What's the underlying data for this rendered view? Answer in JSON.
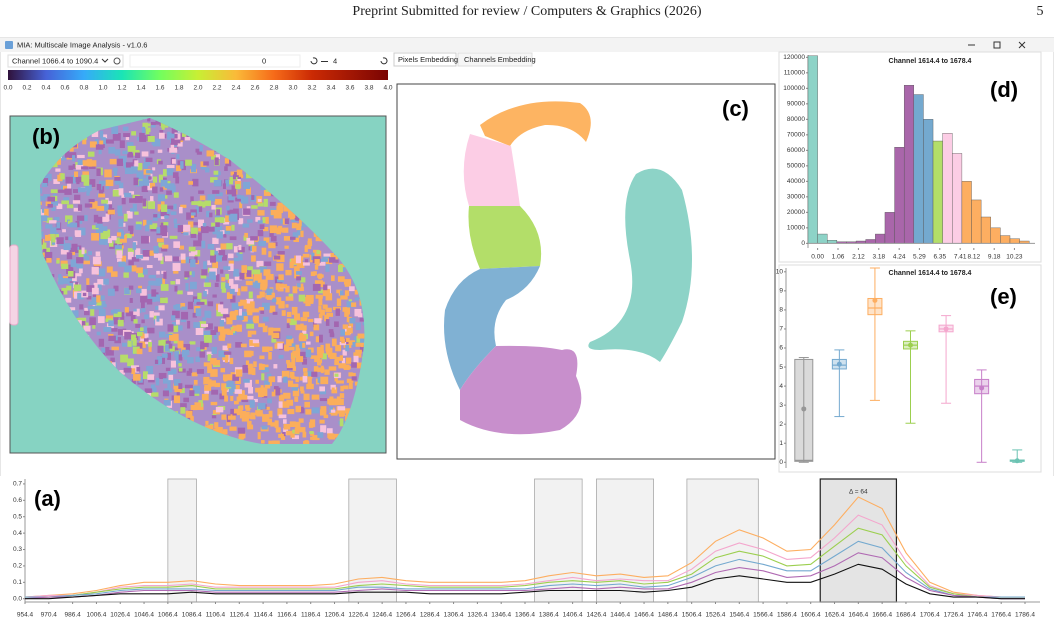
{
  "header": {
    "title": "Preprint Submitted for review / Computers & Graphics (2026)",
    "page": "5"
  },
  "window": {
    "title": "MIA: Multiscale Image Analysis - v1.0.6"
  },
  "toolbar": {
    "channel": "Channel 1066.4 to 1090.4",
    "min": "0",
    "max": "4"
  },
  "colorbar": {
    "ticks": [
      "0.0",
      "0.2",
      "0.4",
      "0.6",
      "0.8",
      "1.0",
      "1.2",
      "1.4",
      "1.6",
      "1.8",
      "2.0",
      "2.2",
      "2.4",
      "2.6",
      "2.8",
      "3.0",
      "3.2",
      "3.4",
      "3.6",
      "3.8",
      "4.0"
    ]
  },
  "tabs": [
    "Pixels Embedding",
    "Channels Embedding"
  ],
  "panel_labels": {
    "a": "(a)",
    "b": "(b)",
    "c": "(c)",
    "d": "(d)",
    "e": "(e)"
  },
  "chart_data": [
    {
      "type": "histogram",
      "title": "Channel 1614.4 to 1678.4",
      "bins": [
        -0.5,
        0,
        0.5,
        1,
        1.5,
        2,
        2.5,
        3,
        3.5,
        4,
        4.5,
        5,
        5.5,
        6,
        6.5,
        7,
        7.5,
        8,
        8.5,
        9,
        9.5,
        10,
        10.5,
        11
      ],
      "values": [
        121000,
        6000,
        2000,
        1000,
        1000,
        1500,
        2500,
        6000,
        20000,
        62000,
        102000,
        96000,
        80000,
        66000,
        71000,
        58000,
        40000,
        28000,
        17000,
        10000,
        5000,
        3000,
        1500
      ],
      "colors": [
        "#8dd3c7",
        "#8dd3c7",
        "#8dd3c7",
        "#a966aa",
        "#a966aa",
        "#a966aa",
        "#a966aa",
        "#a966aa",
        "#a966aa",
        "#a966aa",
        "#a966aa",
        "#74a9cf",
        "#74a9cf",
        "#b3de69",
        "#fccde5",
        "#fccde5",
        "#fdae61",
        "#fdae61",
        "#fdae61",
        "#fdae61",
        "#fdae61",
        "#fdae61",
        "#fdae61"
      ],
      "xlim": [
        -0.5,
        11.3
      ],
      "xticks": [
        {
          "value": 0,
          "label": "0.00"
        },
        1.06,
        2.12,
        3.18,
        4.24,
        5.29,
        6.35,
        7.41,
        8.12,
        9.18,
        10.23
      ],
      "ylim": [
        -3000,
        121500
      ],
      "yticks": [
        0,
        10000,
        20000,
        30000,
        40000,
        50000,
        60000,
        70000,
        80000,
        90000,
        100000,
        110000,
        120000
      ]
    },
    {
      "type": "box",
      "title": "Channel 1614.4 to 1678.4",
      "ylim": [
        -0.3,
        10.2
      ],
      "yticks": [
        0,
        1,
        2,
        3,
        4,
        5,
        6,
        7,
        8,
        9,
        10
      ],
      "boxes": [
        {
          "color": "#969696",
          "min": 0,
          "q1": 0.05,
          "median": 0.1,
          "q3": 5.4,
          "max": 5.5,
          "mean": 2.8
        },
        {
          "color": "#74a9cf",
          "min": 2.4,
          "q1": 4.9,
          "median": 5.1,
          "q3": 5.4,
          "max": 5.9,
          "mean": 5.15
        },
        {
          "color": "#fdae61",
          "min": 3.25,
          "q1": 7.75,
          "median": 8.1,
          "q3": 8.6,
          "max": 10.2,
          "mean": 8.5
        },
        {
          "color": "#9ccf4f",
          "min": 2.05,
          "q1": 5.95,
          "median": 6.15,
          "q3": 6.35,
          "max": 6.9,
          "mean": 6.15
        },
        {
          "color": "#f4a6cd",
          "min": 3.1,
          "q1": 6.85,
          "median": 7.0,
          "q3": 7.2,
          "max": 7.7,
          "mean": 7.0
        },
        {
          "color": "#c77fc9",
          "min": 0.0,
          "q1": 3.6,
          "median": 4.0,
          "q3": 4.35,
          "max": 4.85,
          "mean": 3.9
        },
        {
          "color": "#6cc3b3",
          "min": 0,
          "q1": 0.05,
          "median": 0.08,
          "q3": 0.12,
          "max": 0.65,
          "mean": 0.08
        }
      ]
    },
    {
      "type": "line",
      "x": [
        954.4,
        970.4,
        986.4,
        1006.4,
        1026.4,
        1046.4,
        1066.4,
        1086.4,
        1106.4,
        1126.4,
        1146.4,
        1166.4,
        1186.4,
        1206.4,
        1226.4,
        1246.4,
        1266.4,
        1286.4,
        1306.4,
        1326.4,
        1346.4,
        1366.4,
        1386.4,
        1406.4,
        1426.4,
        1446.4,
        1466.4,
        1486.4,
        1506.4,
        1526.4,
        1546.4,
        1566.4,
        1586.4,
        1606.4,
        1626.4,
        1646.4,
        1666.4,
        1686.4,
        1706.4,
        1726.4,
        1746.4,
        1766.4,
        1786.4
      ],
      "xticks": [
        954.4,
        970.4,
        986.4,
        1006.4,
        1026.4,
        1046.4,
        1066.4,
        1086.4,
        1106.4,
        1126.4,
        1146.4,
        1166.4,
        1186.4,
        1206.4,
        1226.4,
        1246.4,
        1266.4,
        1286.4,
        1306.4,
        1326.4,
        1346.4,
        1366.4,
        1386.4,
        1406.4,
        1426.4,
        1446.4,
        1466.4,
        1486.4,
        1506.4,
        1526.4,
        1546.4,
        1566.4,
        1586.4,
        1606.4,
        1626.4,
        1646.4,
        1666.4,
        1686.4,
        1706.4,
        1726.4,
        1746.4,
        1766.4,
        1786.4
      ],
      "ylim": [
        -0.02,
        0.73
      ],
      "yticks": [
        {
          "value": 0,
          "label": "0.0"
        },
        0.1,
        0.2,
        0.3,
        0.4,
        0.5,
        0.6,
        0.7
      ],
      "series": [
        {
          "color": "#fdae61",
          "values": [
            0.01,
            0.02,
            0.03,
            0.05,
            0.08,
            0.1,
            0.1,
            0.11,
            0.09,
            0.08,
            0.08,
            0.08,
            0.08,
            0.09,
            0.12,
            0.13,
            0.11,
            0.1,
            0.1,
            0.1,
            0.1,
            0.11,
            0.14,
            0.16,
            0.14,
            0.15,
            0.13,
            0.14,
            0.22,
            0.35,
            0.42,
            0.37,
            0.29,
            0.3,
            0.45,
            0.62,
            0.55,
            0.28,
            0.1,
            0.04,
            0.02,
            0.01,
            0.01
          ]
        },
        {
          "color": "#f4a6cd",
          "values": [
            0.01,
            0.02,
            0.02,
            0.04,
            0.07,
            0.08,
            0.08,
            0.09,
            0.07,
            0.07,
            0.07,
            0.07,
            0.07,
            0.07,
            0.1,
            0.11,
            0.09,
            0.08,
            0.08,
            0.08,
            0.08,
            0.09,
            0.11,
            0.13,
            0.11,
            0.12,
            0.11,
            0.11,
            0.18,
            0.29,
            0.34,
            0.3,
            0.24,
            0.25,
            0.37,
            0.51,
            0.45,
            0.23,
            0.08,
            0.03,
            0.02,
            0.01,
            0.01
          ]
        },
        {
          "color": "#9ccf4f",
          "values": [
            0.01,
            0.01,
            0.02,
            0.04,
            0.06,
            0.07,
            0.07,
            0.08,
            0.06,
            0.06,
            0.06,
            0.06,
            0.06,
            0.06,
            0.08,
            0.09,
            0.08,
            0.07,
            0.07,
            0.07,
            0.07,
            0.08,
            0.1,
            0.11,
            0.1,
            0.11,
            0.09,
            0.1,
            0.15,
            0.25,
            0.29,
            0.26,
            0.2,
            0.21,
            0.32,
            0.43,
            0.39,
            0.2,
            0.07,
            0.03,
            0.01,
            0.01,
            0.01
          ]
        },
        {
          "color": "#74a9cf",
          "values": [
            0.01,
            0.01,
            0.02,
            0.03,
            0.05,
            0.06,
            0.06,
            0.06,
            0.05,
            0.05,
            0.05,
            0.05,
            0.05,
            0.05,
            0.07,
            0.07,
            0.06,
            0.06,
            0.06,
            0.06,
            0.06,
            0.06,
            0.08,
            0.09,
            0.08,
            0.09,
            0.07,
            0.08,
            0.13,
            0.2,
            0.24,
            0.21,
            0.17,
            0.17,
            0.26,
            0.35,
            0.31,
            0.16,
            0.06,
            0.02,
            0.01,
            0.01,
            0.01
          ]
        },
        {
          "color": "#b06ab3",
          "values": [
            0,
            0.01,
            0.01,
            0.02,
            0.04,
            0.05,
            0.05,
            0.05,
            0.04,
            0.04,
            0.04,
            0.04,
            0.04,
            0.04,
            0.05,
            0.06,
            0.05,
            0.05,
            0.05,
            0.05,
            0.05,
            0.05,
            0.06,
            0.07,
            0.06,
            0.07,
            0.06,
            0.06,
            0.1,
            0.16,
            0.19,
            0.17,
            0.13,
            0.14,
            0.2,
            0.28,
            0.25,
            0.13,
            0.05,
            0.02,
            0.01,
            0,
            0
          ]
        },
        {
          "color": "#111111",
          "values": [
            0,
            0,
            0.01,
            0.02,
            0.03,
            0.03,
            0.03,
            0.04,
            0.03,
            0.03,
            0.03,
            0.03,
            0.03,
            0.03,
            0.04,
            0.04,
            0.04,
            0.03,
            0.03,
            0.03,
            0.03,
            0.04,
            0.05,
            0.05,
            0.05,
            0.05,
            0.04,
            0.05,
            0.07,
            0.12,
            0.14,
            0.12,
            0.1,
            0.1,
            0.15,
            0.21,
            0.18,
            0.09,
            0.03,
            0.01,
            0.01,
            0,
            0
          ]
        }
      ],
      "regions": [
        [
          1066.4,
          1090.4
        ],
        [
          1218.4,
          1258.4
        ],
        [
          1374.4,
          1414.4
        ],
        [
          1426.4,
          1474.4
        ],
        [
          1502.4,
          1562.4
        ]
      ],
      "selected_region": [
        1614.4,
        1678.4
      ],
      "annotation": "Δ = 64"
    }
  ]
}
